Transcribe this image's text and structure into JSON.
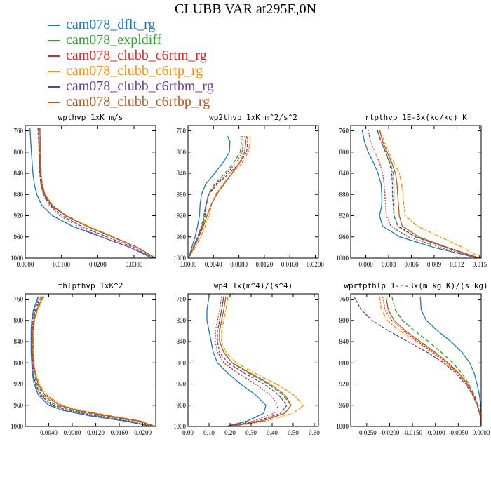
{
  "title": "CLUBB VAR at295E,0N",
  "legend": [
    {
      "name": "cam078_dflt_rg",
      "color": "#1f77b4"
    },
    {
      "name": "cam078_expldiff",
      "color": "#2ca02c"
    },
    {
      "name": "cam078_clubb_c6rtm_rg",
      "color": "#d62728"
    },
    {
      "name": "cam078_clubb_c6rtp_rg",
      "color": "#ff8c00"
    },
    {
      "name": "cam078_clubb_c6rtbm_rg",
      "color": "#6a3d9a"
    },
    {
      "name": "cam078_clubb_c6rtbp_rg",
      "color": "#b05a28"
    }
  ],
  "chart_data": [
    {
      "type": "line",
      "title": "wpthvp  1xK m/s",
      "xlim": [
        0.0,
        0.036
      ],
      "ylim": [
        1000,
        750
      ],
      "xticks": [
        0.0,
        0.01,
        0.02,
        0.03
      ],
      "xticklabels": [
        "0.0000",
        "0.0100",
        "0.0200",
        "0.0300"
      ],
      "yticks": [
        760,
        800,
        840,
        880,
        920,
        960,
        1000
      ],
      "y": [
        755,
        780,
        800,
        820,
        840,
        860,
        880,
        900,
        920,
        940,
        960,
        980,
        1000
      ],
      "series": [
        {
          "name": "cam078_dflt_rg",
          "x": [
            0.0013,
            0.0015,
            0.0017,
            0.0019,
            0.0021,
            0.0025,
            0.0032,
            0.0045,
            0.0075,
            0.013,
            0.021,
            0.029,
            0.035
          ]
        },
        {
          "name": "cam078_expldiff",
          "x": [
            0.0037,
            0.0038,
            0.0039,
            0.004,
            0.0041,
            0.0044,
            0.0052,
            0.0072,
            0.011,
            0.017,
            0.024,
            0.031,
            0.036
          ]
        },
        {
          "name": "cam078_clubb_c6rtm_rg",
          "x": [
            0.0037,
            0.0038,
            0.0039,
            0.004,
            0.0041,
            0.0043,
            0.005,
            0.0065,
            0.0095,
            0.0145,
            0.021,
            0.029,
            0.0355
          ]
        },
        {
          "name": "cam078_clubb_c6rtp_rg",
          "x": [
            0.0041,
            0.0042,
            0.0042,
            0.0043,
            0.0044,
            0.0047,
            0.0055,
            0.0075,
            0.0115,
            0.0175,
            0.0245,
            0.031,
            0.036
          ]
        },
        {
          "name": "cam078_clubb_c6rtbm_rg",
          "x": [
            0.0035,
            0.0037,
            0.0038,
            0.0039,
            0.004,
            0.0043,
            0.0051,
            0.0068,
            0.0102,
            0.0155,
            0.0225,
            0.03,
            0.0355
          ]
        },
        {
          "name": "cam078_clubb_c6rtbp_rg",
          "x": [
            0.004,
            0.0041,
            0.0041,
            0.0042,
            0.0043,
            0.0046,
            0.0054,
            0.0073,
            0.0112,
            0.017,
            0.024,
            0.031,
            0.036
          ]
        }
      ]
    },
    {
      "type": "line",
      "title": "wp2thvp  1xK m^2/s^2",
      "xlim": [
        0.0,
        0.0205
      ],
      "ylim": [
        1000,
        750
      ],
      "xticks": [
        0.0,
        0.004,
        0.008,
        0.012,
        0.016,
        0.02
      ],
      "xticklabels": [
        "0.0000",
        "0.0040",
        "0.0080",
        "0.0120",
        "0.0160",
        "0.0200"
      ],
      "yticks": [
        760,
        800,
        840,
        880,
        920,
        960,
        1000
      ],
      "y": [
        770,
        780,
        800,
        820,
        840,
        860,
        880,
        900,
        920,
        940,
        960,
        980,
        1000
      ],
      "series": [
        {
          "name": "cam078_dflt_rg",
          "x": [
            0.0062,
            0.0066,
            0.0065,
            0.0055,
            0.0042,
            0.0028,
            0.0021,
            0.0019,
            0.0018,
            0.0015,
            0.0011,
            0.0006,
            0.0001
          ]
        },
        {
          "name": "cam078_expldiff",
          "x": [
            0.0083,
            0.0084,
            0.0082,
            0.0072,
            0.0058,
            0.0042,
            0.0032,
            0.0029,
            0.0027,
            0.0023,
            0.0017,
            0.0009,
            0.0001
          ]
        },
        {
          "name": "cam078_clubb_c6rtm_rg",
          "x": [
            0.0085,
            0.0087,
            0.0085,
            0.0076,
            0.0061,
            0.0044,
            0.0032,
            0.0028,
            0.0026,
            0.0022,
            0.0016,
            0.0009,
            0.0001
          ]
        },
        {
          "name": "cam078_clubb_c6rtp_rg",
          "x": [
            0.0097,
            0.0098,
            0.0095,
            0.0085,
            0.007,
            0.0055,
            0.0043,
            0.0037,
            0.0033,
            0.0027,
            0.002,
            0.0011,
            0.0001
          ]
        },
        {
          "name": "cam078_clubb_c6rtbm_rg",
          "x": [
            0.0092,
            0.0094,
            0.0092,
            0.0082,
            0.0065,
            0.0046,
            0.0033,
            0.0028,
            0.0025,
            0.0021,
            0.0015,
            0.0008,
            0.0001
          ]
        },
        {
          "name": "cam078_clubb_c6rtbp_rg",
          "x": [
            0.0089,
            0.0091,
            0.0089,
            0.0081,
            0.0069,
            0.0057,
            0.0045,
            0.0036,
            0.003,
            0.0024,
            0.0017,
            0.0009,
            0.0001
          ]
        }
      ]
    },
    {
      "type": "line",
      "title": "rtpthvp  1E-3x(kg/kg) K",
      "xlim": [
        -0.002,
        0.0152
      ],
      "ylim": [
        1000,
        750
      ],
      "xticks": [
        0.0,
        0.003,
        0.006,
        0.009,
        0.012,
        0.015
      ],
      "xticklabels": [
        "0.000",
        "0.003",
        "0.006",
        "0.009",
        "0.012",
        "0.015"
      ],
      "yticks": [
        760,
        800,
        840,
        880,
        920,
        960,
        1000
      ],
      "y": [
        758,
        780,
        800,
        820,
        840,
        860,
        880,
        900,
        920,
        940,
        960,
        980,
        1000
      ],
      "series": [
        {
          "name": "cam078_dflt_rg",
          "x": [
            -0.0005,
            -0.0002,
            0.0003,
            0.001,
            0.0016,
            0.002,
            0.0021,
            0.0021,
            0.0018,
            0.0022,
            0.0045,
            0.009,
            0.0148
          ]
        },
        {
          "name": "cam078_expldiff",
          "x": [
            0.0015,
            0.002,
            0.0026,
            0.0032,
            0.0036,
            0.0037,
            0.0037,
            0.0037,
            0.0037,
            0.0042,
            0.0065,
            0.0105,
            0.015
          ]
        },
        {
          "name": "cam078_clubb_c6rtm_rg",
          "x": [
            0.0003,
            0.0006,
            0.0012,
            0.0018,
            0.0022,
            0.0024,
            0.0025,
            0.0026,
            0.0027,
            0.0033,
            0.0056,
            0.0098,
            0.0148
          ]
        },
        {
          "name": "cam078_clubb_c6rtp_rg",
          "x": [
            0.0018,
            0.0024,
            0.003,
            0.0037,
            0.0044,
            0.0047,
            0.0049,
            0.005,
            0.0052,
            0.0068,
            0.0098,
            0.0128,
            0.0152
          ]
        },
        {
          "name": "cam078_clubb_c6rtbm_rg",
          "x": [
            0.0015,
            0.002,
            0.0026,
            0.0031,
            0.0034,
            0.0035,
            0.0035,
            0.0036,
            0.0037,
            0.0043,
            0.0066,
            0.0106,
            0.015
          ]
        },
        {
          "name": "cam078_clubb_c6rtbp_rg",
          "x": [
            0.0018,
            0.0022,
            0.0028,
            0.0034,
            0.0039,
            0.0041,
            0.0042,
            0.0043,
            0.0044,
            0.0048,
            0.007,
            0.0108,
            0.015
          ]
        }
      ]
    },
    {
      "type": "line",
      "title": "thlpthvp  1xK^2",
      "xlim": [
        0.0,
        0.0222
      ],
      "ylim": [
        1000,
        750
      ],
      "xticks": [
        0.004,
        0.008,
        0.012,
        0.016,
        0.02
      ],
      "xticklabels": [
        "0.0040",
        "0.0080",
        "0.0120",
        "0.0160",
        "0.0200"
      ],
      "yticks": [
        760,
        800,
        840,
        880,
        920,
        960,
        1000
      ],
      "y": [
        755,
        780,
        800,
        820,
        840,
        860,
        880,
        900,
        920,
        940,
        960,
        970,
        980,
        990,
        1000
      ],
      "series": [
        {
          "name": "cam078_dflt_rg",
          "x": [
            0.0022,
            0.0014,
            0.0011,
            0.001,
            0.001,
            0.001,
            0.0011,
            0.0012,
            0.0015,
            0.0022,
            0.004,
            0.0065,
            0.011,
            0.017,
            0.0215
          ]
        },
        {
          "name": "cam078_expldiff",
          "x": [
            0.0028,
            0.0018,
            0.0014,
            0.0012,
            0.0012,
            0.0012,
            0.0013,
            0.0015,
            0.002,
            0.003,
            0.0052,
            0.0083,
            0.0135,
            0.019,
            0.022
          ]
        },
        {
          "name": "cam078_clubb_c6rtm_rg",
          "x": [
            0.0026,
            0.0017,
            0.0013,
            0.0012,
            0.0011,
            0.0012,
            0.0012,
            0.0014,
            0.0018,
            0.0027,
            0.0048,
            0.0076,
            0.0125,
            0.018,
            0.0218
          ]
        },
        {
          "name": "cam078_clubb_c6rtp_rg",
          "x": [
            0.0032,
            0.0021,
            0.0016,
            0.0014,
            0.0014,
            0.0014,
            0.0015,
            0.0018,
            0.0024,
            0.0036,
            0.0062,
            0.0095,
            0.0148,
            0.0198,
            0.0222
          ]
        },
        {
          "name": "cam078_clubb_c6rtbm_rg",
          "x": [
            0.0024,
            0.0016,
            0.0012,
            0.0011,
            0.0011,
            0.0011,
            0.0012,
            0.0013,
            0.0017,
            0.0025,
            0.0045,
            0.0072,
            0.012,
            0.0175,
            0.0216
          ]
        },
        {
          "name": "cam078_clubb_c6rtbp_rg",
          "x": [
            0.003,
            0.002,
            0.0015,
            0.0013,
            0.0013,
            0.0013,
            0.0014,
            0.0017,
            0.0022,
            0.0033,
            0.0058,
            0.009,
            0.0142,
            0.0195,
            0.0221
          ]
        }
      ]
    },
    {
      "type": "line",
      "title": "wp4  1x(m^4)/(s^4)",
      "xlim": [
        0.0,
        0.62
      ],
      "ylim": [
        1000,
        750
      ],
      "xticks": [
        0.0,
        0.1,
        0.2,
        0.3,
        0.4,
        0.5,
        0.6
      ],
      "xticklabels": [
        "0.00",
        "0.10",
        "0.20",
        "0.30",
        "0.40",
        "0.50",
        "0.60"
      ],
      "yticks": [
        760,
        800,
        840,
        880,
        920,
        960,
        1000
      ],
      "y": [
        755,
        780,
        800,
        820,
        840,
        860,
        880,
        900,
        920,
        940,
        960,
        975,
        990,
        1000
      ],
      "series": [
        {
          "name": "cam078_dflt_rg",
          "x": [
            0.1,
            0.09,
            0.09,
            0.1,
            0.11,
            0.12,
            0.14,
            0.19,
            0.25,
            0.32,
            0.37,
            0.36,
            0.28,
            0.18
          ]
        },
        {
          "name": "cam078_expldiff",
          "x": [
            0.17,
            0.16,
            0.15,
            0.15,
            0.15,
            0.17,
            0.21,
            0.29,
            0.38,
            0.45,
            0.49,
            0.46,
            0.35,
            0.2
          ]
        },
        {
          "name": "cam078_clubb_c6rtm_rg",
          "x": [
            0.16,
            0.15,
            0.14,
            0.13,
            0.13,
            0.14,
            0.17,
            0.24,
            0.32,
            0.39,
            0.43,
            0.41,
            0.31,
            0.18
          ]
        },
        {
          "name": "cam078_clubb_c6rtp_rg",
          "x": [
            0.19,
            0.18,
            0.17,
            0.16,
            0.16,
            0.18,
            0.23,
            0.32,
            0.42,
            0.5,
            0.55,
            0.5,
            0.37,
            0.21
          ]
        },
        {
          "name": "cam078_clubb_c6rtbm_rg",
          "x": [
            0.17,
            0.16,
            0.15,
            0.14,
            0.14,
            0.15,
            0.19,
            0.27,
            0.36,
            0.43,
            0.47,
            0.44,
            0.33,
            0.19
          ]
        },
        {
          "name": "cam078_clubb_c6rtbp_rg",
          "x": [
            0.18,
            0.17,
            0.16,
            0.15,
            0.15,
            0.17,
            0.21,
            0.3,
            0.39,
            0.46,
            0.49,
            0.46,
            0.35,
            0.2
          ]
        }
      ]
    },
    {
      "type": "line",
      "title": "wprtpthlp  1-E-3x(m kg K)/(s kg)",
      "xlim": [
        -0.0285,
        0.0
      ],
      "ylim": [
        1000,
        750
      ],
      "xticks": [
        -0.025,
        -0.02,
        -0.015,
        -0.01,
        -0.005,
        0.0
      ],
      "xticklabels": [
        "-0.0250",
        "-0.0200",
        "-0.0150",
        "-0.0100",
        "-0.0050",
        "0.0000"
      ],
      "yticks": [
        760,
        800,
        840,
        880,
        920,
        960,
        1000
      ],
      "y": [
        755,
        780,
        800,
        820,
        840,
        860,
        880,
        900,
        920,
        940,
        960,
        980,
        1000
      ],
      "series": [
        {
          "name": "cam078_dflt_rg",
          "x": [
            -0.0133,
            -0.0131,
            -0.012,
            -0.0095,
            -0.0066,
            -0.0042,
            -0.0025,
            -0.0015,
            -0.0009,
            -0.0004,
            -0.0001,
            0.0,
            0.0
          ]
        },
        {
          "name": "cam078_expldiff",
          "x": [
            -0.0195,
            -0.0188,
            -0.0172,
            -0.0145,
            -0.0115,
            -0.0087,
            -0.0062,
            -0.0042,
            -0.0027,
            -0.0015,
            -0.0007,
            -0.0002,
            0.0
          ]
        },
        {
          "name": "cam078_clubb_c6rtm_rg",
          "x": [
            -0.0215,
            -0.021,
            -0.0195,
            -0.017,
            -0.0138,
            -0.0105,
            -0.0075,
            -0.005,
            -0.0032,
            -0.0018,
            -0.0008,
            -0.0002,
            0.0
          ]
        },
        {
          "name": "cam078_clubb_c6rtp_rg",
          "x": [
            -0.0222,
            -0.0218,
            -0.0205,
            -0.0178,
            -0.0142,
            -0.0108,
            -0.0077,
            -0.0052,
            -0.0033,
            -0.0018,
            -0.0008,
            -0.0002,
            0.0
          ]
        },
        {
          "name": "cam078_clubb_c6rtbm_rg",
          "x": [
            -0.0278,
            -0.0262,
            -0.0238,
            -0.0202,
            -0.016,
            -0.0118,
            -0.0082,
            -0.0055,
            -0.0034,
            -0.0019,
            -0.0009,
            -0.0002,
            0.0
          ]
        },
        {
          "name": "cam078_clubb_c6rtbp_rg",
          "x": [
            -0.0208,
            -0.0203,
            -0.019,
            -0.0165,
            -0.0133,
            -0.0101,
            -0.0072,
            -0.0048,
            -0.003,
            -0.0017,
            -0.0008,
            -0.0002,
            0.0
          ]
        }
      ]
    }
  ]
}
